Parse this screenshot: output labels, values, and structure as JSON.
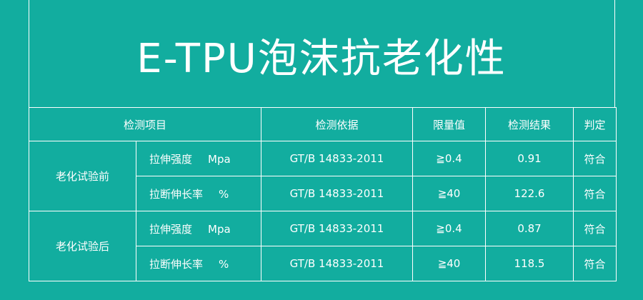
{
  "title": "E-TPU泡沫抗老化性",
  "headers": {
    "item": "检测项目",
    "basis": "检测依据",
    "limit": "限量值",
    "result": "检测结果",
    "verdict": "判定"
  },
  "groups": [
    {
      "label": "老化试验前",
      "rows": [
        {
          "item": "拉伸强度",
          "unit": "Mpa",
          "basis": "GT/B  14833-2011",
          "limit": "≧0.4",
          "result": "0.91",
          "verdict": "符合"
        },
        {
          "item": "拉断伸长率",
          "unit": "%",
          "basis": "GT/B  14833-2011",
          "limit": "≧40",
          "result": "122.6",
          "verdict": "符合"
        }
      ]
    },
    {
      "label": "老化试验后",
      "rows": [
        {
          "item": "拉伸强度",
          "unit": "Mpa",
          "basis": "GT/B  14833-2011",
          "limit": "≧0.4",
          "result": "0.87",
          "verdict": "符合"
        },
        {
          "item": "拉断伸长率",
          "unit": "%",
          "basis": "GT/B  14833-2011",
          "limit": "≧40",
          "result": "118.5",
          "verdict": "符合"
        }
      ]
    }
  ],
  "colors": {
    "background": "#12ad9f",
    "text": "#ffffff",
    "lines": "#ffffff"
  }
}
